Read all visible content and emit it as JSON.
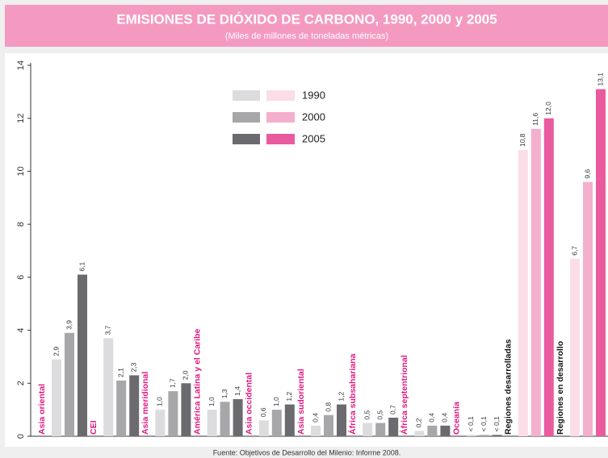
{
  "chart_data": {
    "type": "bar",
    "title": "EMISIONES DE DIÓXIDO DE CARBONO, 1990, 2000 y 2005",
    "subtitle": "(Miles de millones de toneladas métricas)",
    "source": "Fuente: Objetivos de Desarrollo del Milenio: Informe 2008.",
    "categories": [
      "Asia oriental",
      "CEI",
      "Asia meridional",
      "América Latina y el Caribe",
      "Asia occidental",
      "Asia sudoriental",
      "África subsahariana",
      "África septentrional",
      "Oceanía",
      "Regiones desarrolladas",
      "Regiones en desarrollo"
    ],
    "label_colors": [
      "#e0157f",
      "#e0157f",
      "#e0157f",
      "#e0157f",
      "#e0157f",
      "#e0157f",
      "#e0157f",
      "#e0157f",
      "#e0157f",
      "#111111",
      "#111111"
    ],
    "series": [
      {
        "name": "1990",
        "colors": [
          "#dcdcde",
          "#dcdcde",
          "#dcdcde",
          "#dcdcde",
          "#dcdcde",
          "#dcdcde",
          "#dcdcde",
          "#dcdcde",
          "#dcdcde",
          "#fbdde8",
          "#fbdde8"
        ],
        "values": [
          2.9,
          3.7,
          1.0,
          1.0,
          0.6,
          0.4,
          0.5,
          0.2,
          0.05,
          10.8,
          6.7
        ],
        "value_labels": [
          "2,9",
          "3,7",
          "1,0",
          "1,0",
          "0,6",
          "0,4",
          "0,5",
          "0,2",
          "< 0,1",
          "10,8",
          "6,7"
        ]
      },
      {
        "name": "2000",
        "colors": [
          "#a7a7aa",
          "#a7a7aa",
          "#a7a7aa",
          "#a7a7aa",
          "#a7a7aa",
          "#a7a7aa",
          "#a7a7aa",
          "#a7a7aa",
          "#a7a7aa",
          "#f4afcd",
          "#f4afcd"
        ],
        "values": [
          3.9,
          2.1,
          1.7,
          1.3,
          1.0,
          0.8,
          0.5,
          0.4,
          0.05,
          11.6,
          9.6
        ],
        "value_labels": [
          "3,9",
          "2,1",
          "1,7",
          "1,3",
          "1,0",
          "0,8",
          "0,5",
          "0,4",
          "< 0,1",
          "11,6",
          "9,6"
        ]
      },
      {
        "name": "2005",
        "colors": [
          "#6b6b6f",
          "#6b6b6f",
          "#6b6b6f",
          "#6b6b6f",
          "#6b6b6f",
          "#6b6b6f",
          "#6b6b6f",
          "#6b6b6f",
          "#6b6b6f",
          "#ea5a9e",
          "#ea5a9e"
        ],
        "values": [
          6.1,
          2.3,
          2.0,
          1.4,
          1.2,
          1.2,
          0.7,
          0.4,
          0.05,
          12.0,
          13.1
        ],
        "value_labels": [
          "6,1",
          "2,3",
          "2,0",
          "1,4",
          "1,2",
          "1,2",
          "0,7",
          "0,4",
          "< 0,1",
          "12,0",
          "13,1"
        ]
      }
    ],
    "ylim": [
      0,
      14
    ],
    "yticks": [
      0,
      2,
      4,
      6,
      8,
      10,
      12,
      14
    ]
  }
}
